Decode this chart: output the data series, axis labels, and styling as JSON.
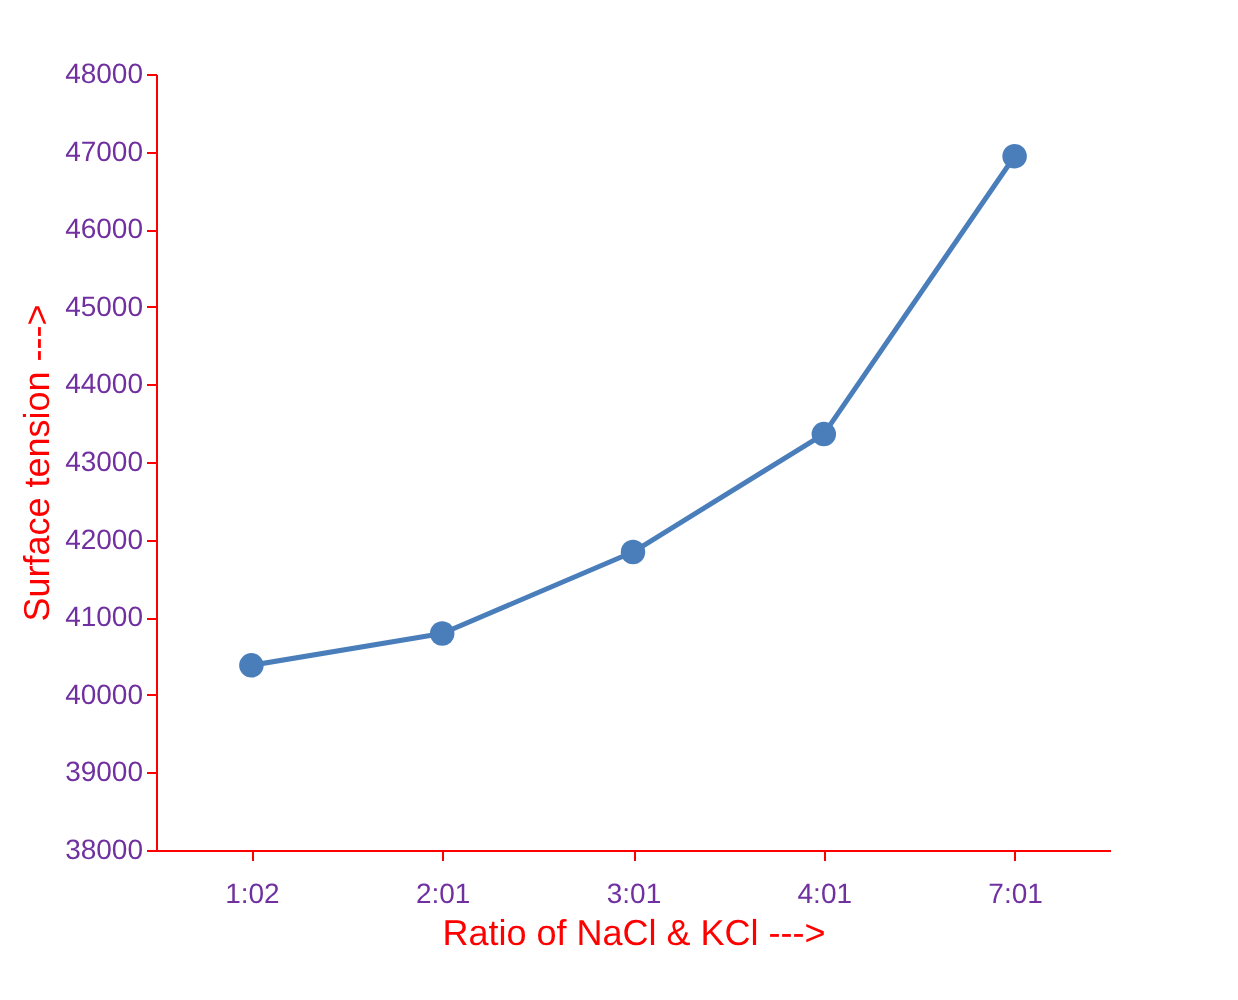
{
  "chart_data": {
    "type": "line",
    "xlabel": "Ratio of NaCl & KCl --->",
    "ylabel": "Surface tension --->",
    "categories": [
      "1:02",
      "2:01",
      "3:01",
      "4:01",
      "7:01"
    ],
    "series": [
      {
        "color": "#4a7ebb",
        "values": [
          40380,
          40790,
          41840,
          43360,
          46940
        ]
      }
    ],
    "ylim": [
      38000,
      48000
    ],
    "yticks": [
      38000,
      39000,
      40000,
      41000,
      42000,
      43000,
      44000,
      45000,
      46000,
      47000,
      48000
    ],
    "grid": false,
    "marker": "circle",
    "line_style": "solid"
  }
}
